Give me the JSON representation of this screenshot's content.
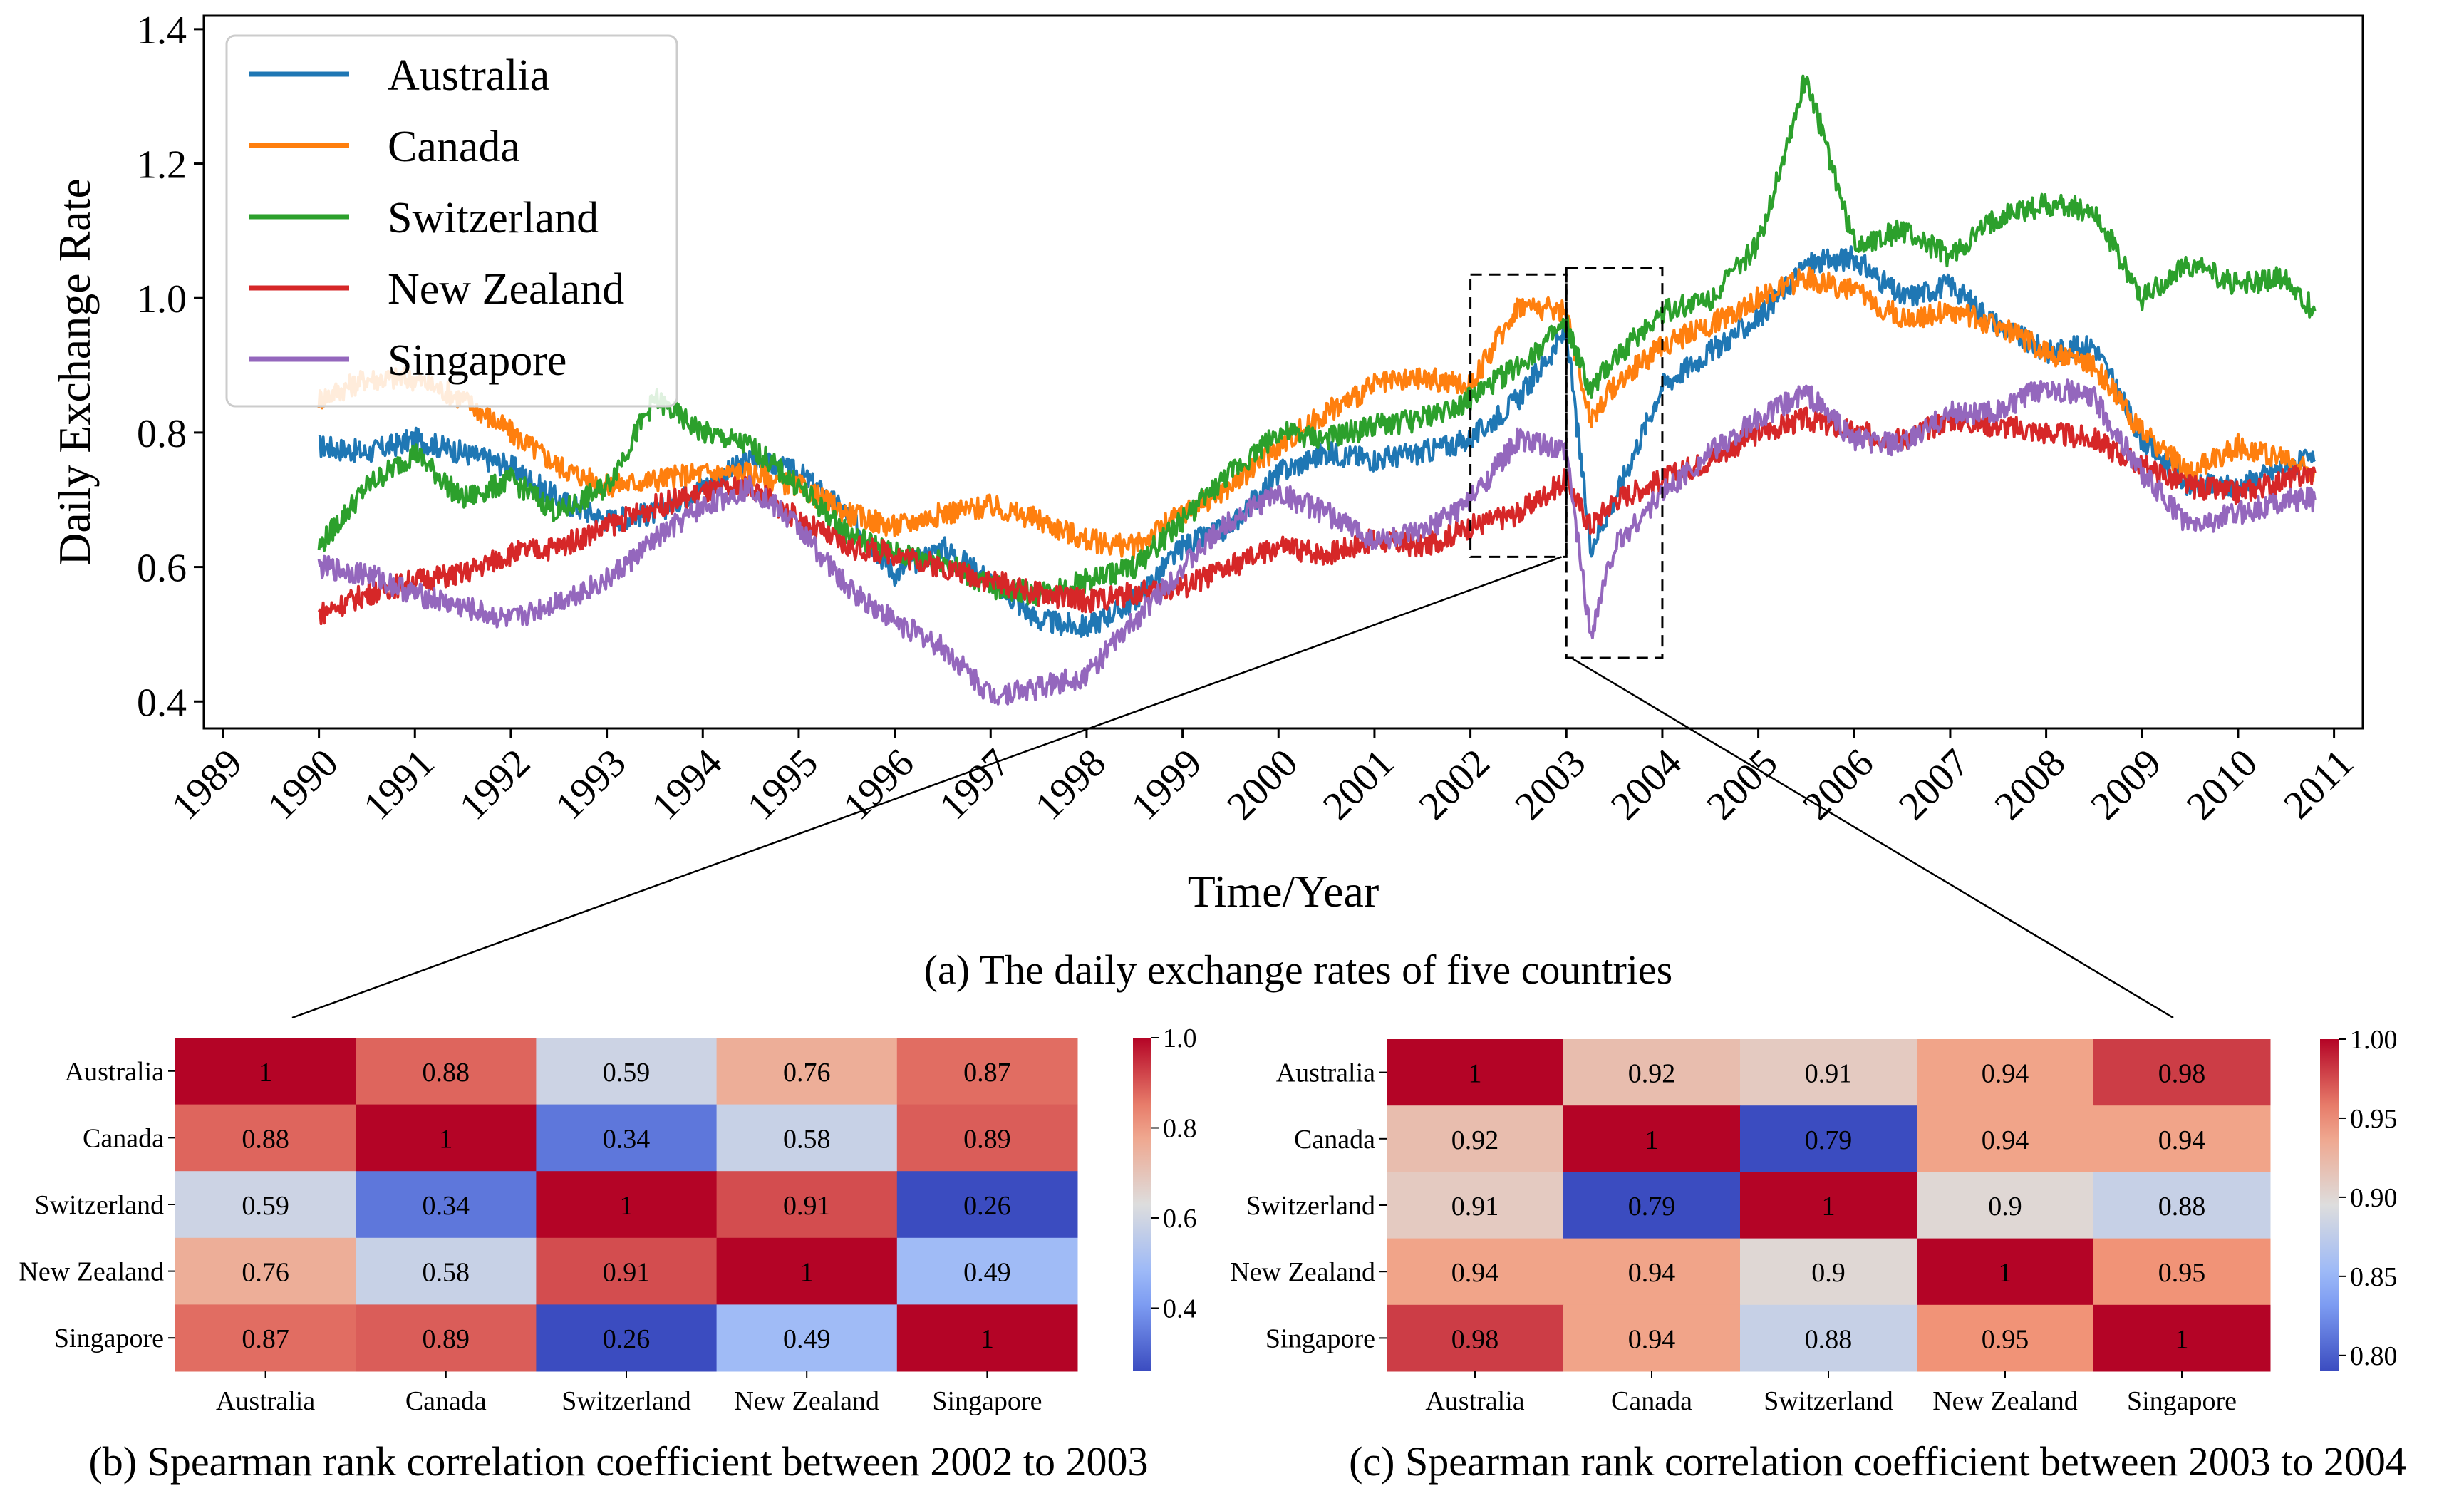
{
  "chart_data": [
    {
      "type": "line",
      "title": "",
      "caption": "(a) The daily exchange rates of five countries",
      "xlabel": "Time/Year",
      "ylabel": "Daily Exchange Rate",
      "xlim": [
        1988.8,
        2011.3
      ],
      "ylim": [
        0.36,
        1.42
      ],
      "xticks": [
        "1989",
        "1990",
        "1991",
        "1992",
        "1993",
        "1994",
        "1995",
        "1996",
        "1997",
        "1998",
        "1999",
        "2000",
        "2001",
        "2002",
        "2003",
        "2004",
        "2005",
        "2006",
        "2007",
        "2008",
        "2009",
        "2010",
        "2011"
      ],
      "yticks": [
        "0.4",
        "0.6",
        "0.8",
        "1.0",
        "1.2",
        "1.4"
      ],
      "legend_position": "upper-left",
      "grid": false,
      "highlight_windows": [
        {
          "x": [
            2002.0,
            2003.0
          ],
          "y": [
            0.615,
            1.035
          ]
        },
        {
          "x": [
            2003.0,
            2004.0
          ],
          "y": [
            0.465,
            1.045
          ]
        }
      ],
      "x": [
        1990.0,
        1990.5,
        1991.0,
        1991.5,
        1992.0,
        1992.5,
        1993.0,
        1993.5,
        1994.0,
        1994.5,
        1995.0,
        1995.5,
        1996.0,
        1996.5,
        1997.0,
        1997.5,
        1998.0,
        1998.5,
        1999.0,
        1999.5,
        2000.0,
        2000.5,
        2001.0,
        2001.5,
        2002.0,
        2002.5,
        2003.0,
        2003.25,
        2003.5,
        2004.0,
        2004.5,
        2005.0,
        2005.5,
        2006.0,
        2006.5,
        2007.0,
        2007.5,
        2008.0,
        2008.5,
        2009.0,
        2009.5,
        2010.0,
        2010.5,
        2010.8
      ],
      "series": [
        {
          "name": "Australia",
          "color": "#1f77b4",
          "values": [
            0.78,
            0.77,
            0.79,
            0.77,
            0.75,
            0.7,
            0.67,
            0.68,
            0.72,
            0.76,
            0.74,
            0.68,
            0.59,
            0.63,
            0.58,
            0.52,
            0.51,
            0.55,
            0.63,
            0.66,
            0.74,
            0.77,
            0.76,
            0.77,
            0.79,
            0.85,
            0.95,
            0.63,
            0.7,
            0.87,
            0.92,
            0.97,
            1.05,
            1.06,
            1.0,
            1.02,
            0.96,
            0.92,
            0.93,
            0.79,
            0.72,
            0.72,
            0.75,
            0.76
          ]
        },
        {
          "name": "Canada",
          "color": "#ff7f0e",
          "values": [
            0.85,
            0.88,
            0.88,
            0.85,
            0.8,
            0.75,
            0.72,
            0.73,
            0.74,
            0.74,
            0.72,
            0.68,
            0.66,
            0.68,
            0.69,
            0.67,
            0.64,
            0.63,
            0.68,
            0.72,
            0.78,
            0.83,
            0.87,
            0.88,
            0.87,
            0.99,
            0.98,
            0.82,
            0.87,
            0.93,
            0.96,
            1.0,
            1.03,
            1.01,
            0.97,
            0.98,
            0.96,
            0.92,
            0.9,
            0.8,
            0.74,
            0.78,
            0.76,
            0.74
          ]
        },
        {
          "name": "Switzerland",
          "color": "#2ca02c",
          "values": [
            0.63,
            0.72,
            0.77,
            0.7,
            0.73,
            0.68,
            0.72,
            0.85,
            0.8,
            0.78,
            0.72,
            0.65,
            0.62,
            0.61,
            0.57,
            0.56,
            0.58,
            0.6,
            0.67,
            0.74,
            0.8,
            0.79,
            0.81,
            0.82,
            0.85,
            0.9,
            0.96,
            0.86,
            0.91,
            0.98,
            1.0,
            1.08,
            1.33,
            1.08,
            1.1,
            1.06,
            1.12,
            1.14,
            1.13,
            1.0,
            1.05,
            1.02,
            1.03,
            0.98
          ]
        },
        {
          "name": "New Zealand",
          "color": "#d62728",
          "values": [
            0.53,
            0.56,
            0.58,
            0.59,
            0.62,
            0.63,
            0.66,
            0.69,
            0.71,
            0.72,
            0.67,
            0.63,
            0.62,
            0.6,
            0.58,
            0.56,
            0.55,
            0.56,
            0.57,
            0.6,
            0.63,
            0.62,
            0.64,
            0.63,
            0.66,
            0.68,
            0.73,
            0.66,
            0.7,
            0.73,
            0.76,
            0.8,
            0.82,
            0.8,
            0.79,
            0.82,
            0.81,
            0.8,
            0.79,
            0.75,
            0.72,
            0.71,
            0.73,
            0.74
          ]
        },
        {
          "name": "Singapore",
          "color": "#9467bd",
          "values": [
            0.6,
            0.59,
            0.56,
            0.54,
            0.52,
            0.55,
            0.58,
            0.64,
            0.69,
            0.72,
            0.66,
            0.57,
            0.52,
            0.48,
            0.41,
            0.42,
            0.44,
            0.52,
            0.6,
            0.67,
            0.71,
            0.68,
            0.64,
            0.65,
            0.7,
            0.79,
            0.77,
            0.5,
            0.63,
            0.71,
            0.77,
            0.82,
            0.86,
            0.79,
            0.78,
            0.83,
            0.83,
            0.87,
            0.85,
            0.74,
            0.66,
            0.68,
            0.7,
            0.7
          ]
        }
      ]
    },
    {
      "type": "heatmap",
      "caption": "(b) Spearman rank correlation coefficient between 2002 to 2003",
      "rows": [
        "Australia",
        "Canada",
        "Switzerland",
        "New Zealand",
        "Singapore"
      ],
      "columns": [
        "Australia",
        "Canada",
        "Switzerland",
        "New Zealand",
        "Singapore"
      ],
      "matrix": [
        [
          1,
          0.88,
          0.59,
          0.76,
          0.87
        ],
        [
          0.88,
          1,
          0.34,
          0.58,
          0.89
        ],
        [
          0.59,
          0.34,
          1,
          0.91,
          0.26
        ],
        [
          0.76,
          0.58,
          0.91,
          1,
          0.49
        ],
        [
          0.87,
          0.89,
          0.26,
          0.49,
          1
        ]
      ],
      "cell_labels": [
        [
          "1",
          "0.88",
          "0.59",
          "0.76",
          "0.87"
        ],
        [
          "0.88",
          "1",
          "0.34",
          "0.58",
          "0.89"
        ],
        [
          "0.59",
          "0.34",
          "1",
          "0.91",
          "0.26"
        ],
        [
          "0.76",
          "0.58",
          "0.91",
          "1",
          "0.49"
        ],
        [
          "0.87",
          "0.89",
          "0.26",
          "0.49",
          "1"
        ]
      ],
      "colorbar_range": [
        0.26,
        1.0
      ],
      "colorbar_ticks": [
        "1.0",
        "0.8",
        "0.6",
        "0.4"
      ],
      "colormap": "coolwarm"
    },
    {
      "type": "heatmap",
      "caption": "(c) Spearman rank correlation coefficient between 2003 to 2004",
      "rows": [
        "Australia",
        "Canada",
        "Switzerland",
        "New Zealand",
        "Singapore"
      ],
      "columns": [
        "Australia",
        "Canada",
        "Switzerland",
        "New Zealand",
        "Singapore"
      ],
      "matrix": [
        [
          1,
          0.92,
          0.91,
          0.94,
          0.98
        ],
        [
          0.92,
          1,
          0.79,
          0.94,
          0.94
        ],
        [
          0.91,
          0.79,
          1,
          0.9,
          0.88
        ],
        [
          0.94,
          0.94,
          0.9,
          1,
          0.95
        ],
        [
          0.98,
          0.94,
          0.88,
          0.95,
          1
        ]
      ],
      "cell_labels": [
        [
          "1",
          "0.92",
          "0.91",
          "0.94",
          "0.98"
        ],
        [
          "0.92",
          "1",
          "0.79",
          "0.94",
          "0.94"
        ],
        [
          "0.91",
          "0.79",
          "1",
          "0.9",
          "0.88"
        ],
        [
          "0.94",
          "0.94",
          "0.9",
          "1",
          "0.95"
        ],
        [
          "0.98",
          "0.94",
          "0.88",
          "0.95",
          "1"
        ]
      ],
      "colorbar_range": [
        0.79,
        1.0
      ],
      "colorbar_ticks": [
        "1.00",
        "0.95",
        "0.90",
        "0.85",
        "0.80"
      ],
      "colormap": "coolwarm"
    }
  ]
}
